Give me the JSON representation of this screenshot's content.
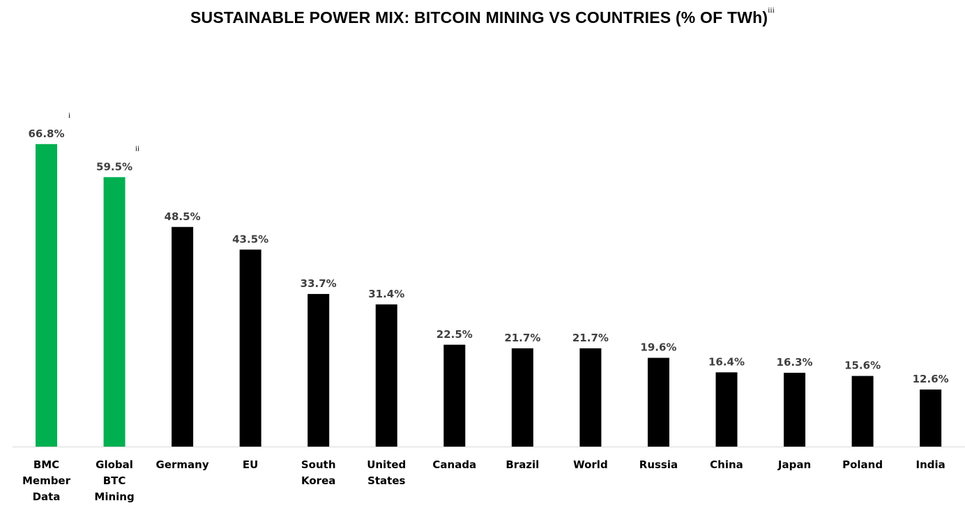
{
  "chart_data": {
    "type": "bar",
    "title": "SUSTAINABLE POWER MIX: BITCOIN MINING VS COUNTRIES (% OF TWh)",
    "title_note": "iii",
    "xlabel": "",
    "ylabel": "",
    "ylim": [
      0,
      70
    ],
    "grid": false,
    "categories": [
      [
        "BMC",
        "Member",
        "Data"
      ],
      [
        "Global",
        "BTC",
        "Mining"
      ],
      [
        "Germany"
      ],
      [
        "EU"
      ],
      [
        "South",
        "Korea"
      ],
      [
        "United",
        "States"
      ],
      [
        "Canada"
      ],
      [
        "Brazil"
      ],
      [
        "World"
      ],
      [
        "Russia"
      ],
      [
        "China"
      ],
      [
        "Japan"
      ],
      [
        "Poland"
      ],
      [
        "India"
      ]
    ],
    "values": [
      66.8,
      59.5,
      48.5,
      43.5,
      33.7,
      31.4,
      22.5,
      21.7,
      21.7,
      19.6,
      16.4,
      16.3,
      15.6,
      12.6
    ],
    "labels": [
      "66.8%",
      "59.5%",
      "48.5%",
      "43.5%",
      "33.7%",
      "31.4%",
      "22.5%",
      "21.7%",
      "21.7%",
      "19.6%",
      "16.4%",
      "16.3%",
      "15.6%",
      "12.6%"
    ],
    "notes": [
      "i",
      "ii",
      "",
      "",
      "",
      "",
      "",
      "",
      "",
      "",
      "",
      "",
      "",
      ""
    ],
    "colors": [
      "#00B050",
      "#00B050",
      "#000000",
      "#000000",
      "#000000",
      "#000000",
      "#000000",
      "#000000",
      "#000000",
      "#000000",
      "#000000",
      "#000000",
      "#000000",
      "#000000"
    ],
    "axis_color": "#D9D9D9"
  }
}
